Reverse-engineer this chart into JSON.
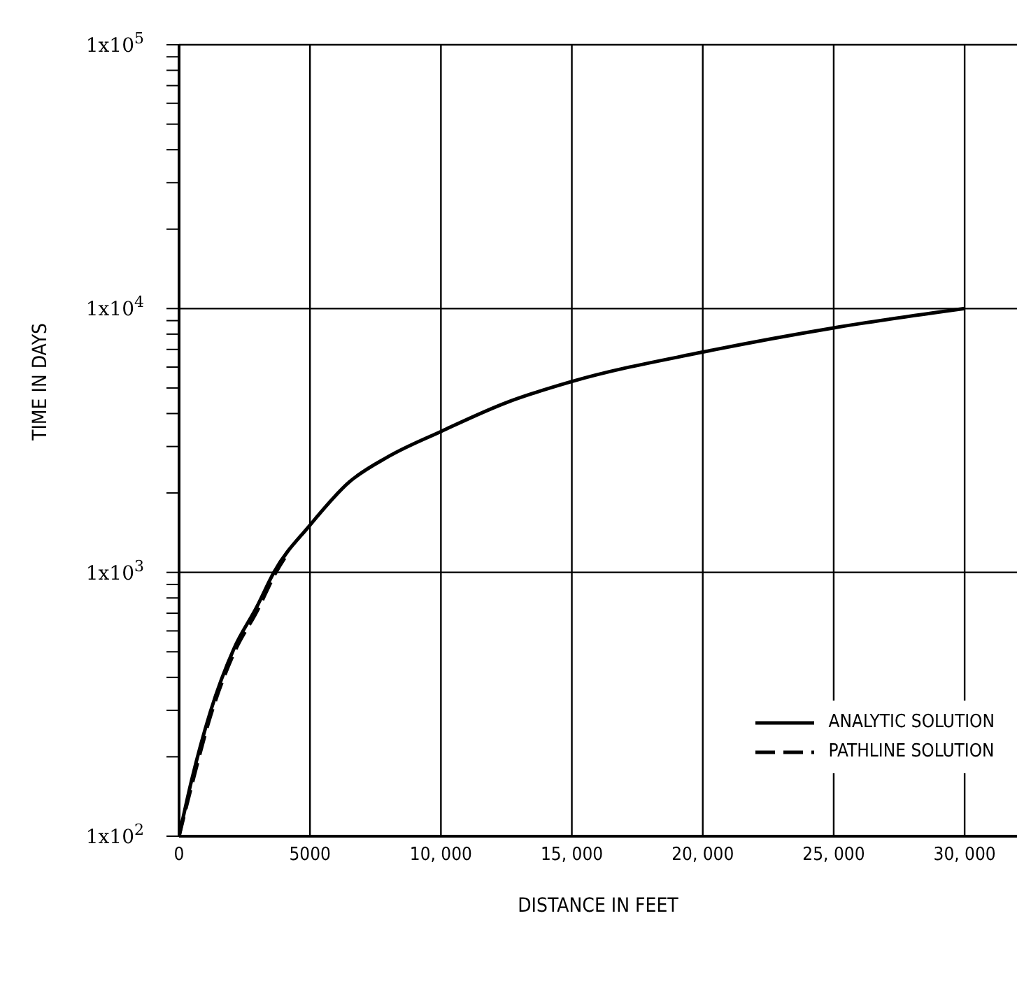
{
  "chart_data": {
    "type": "line",
    "xlabel": "DISTANCE IN FEET",
    "ylabel": "TIME IN DAYS",
    "series": [
      {
        "name": "ANALYTIC SOLUTION",
        "color": "#000000",
        "line_style": "solid",
        "x": [
          0,
          480,
          1190,
          2100,
          2970,
          3620,
          5000,
          6500,
          8000,
          10000,
          12500,
          15000,
          20000,
          25000,
          30000
        ],
        "values": [
          100,
          163,
          295,
          515,
          740,
          1000,
          1510,
          2200,
          2750,
          3420,
          4400,
          5290,
          6840,
          8450,
          10000
        ]
      },
      {
        "name": "PATHLINE SOLUTION",
        "color": "#000000",
        "line_style": "dashed",
        "x": [
          0,
          500,
          1200,
          2100,
          3000,
          3700,
          4200
        ],
        "values": [
          100,
          158,
          285,
          495,
          720,
          1000,
          1200
        ]
      }
    ],
    "log": "y",
    "xlim": [
      0,
      32000
    ],
    "xticks": [
      0,
      5000,
      {
        "value": 10000,
        "label": "10, 000"
      },
      {
        "value": 15000,
        "label": "15, 000"
      },
      {
        "value": 20000,
        "label": "20, 000"
      },
      {
        "value": 25000,
        "label": "25, 000"
      },
      {
        "value": 30000,
        "label": "30, 000"
      }
    ],
    "ylim": [
      100,
      100000
    ],
    "yticks": [
      {
        "value": 100,
        "label": "1x10$^{2}$"
      },
      {
        "value": 200,
        "label": null
      },
      {
        "value": 300,
        "label": null
      },
      {
        "value": 400,
        "label": null
      },
      {
        "value": 500,
        "label": null
      },
      {
        "value": 600,
        "label": null
      },
      {
        "value": 700,
        "label": null
      },
      {
        "value": 800,
        "label": null
      },
      {
        "value": 900,
        "label": null
      },
      {
        "value": 1000,
        "label": "1x10$^{3}$"
      },
      {
        "value": 2000,
        "label": null
      },
      {
        "value": 3000,
        "label": null
      },
      {
        "value": 4000,
        "label": null
      },
      {
        "value": 5000,
        "label": null
      },
      {
        "value": 6000,
        "label": null
      },
      {
        "value": 7000,
        "label": null
      },
      {
        "value": 8000,
        "label": null
      },
      {
        "value": 9000,
        "label": null
      },
      {
        "value": 10000,
        "label": "1x10$^{4}$"
      },
      {
        "value": 20000,
        "label": null
      },
      {
        "value": 30000,
        "label": null
      },
      {
        "value": 40000,
        "label": null
      },
      {
        "value": 50000,
        "label": null
      },
      {
        "value": 60000,
        "label": null
      },
      {
        "value": 70000,
        "label": null
      },
      {
        "value": 80000,
        "label": null
      },
      {
        "value": 90000,
        "label": null
      },
      {
        "value": 100000,
        "label": "1x10$^{5}$"
      }
    ],
    "grid": true,
    "legend": "bottom right",
    "marker": "none"
  }
}
